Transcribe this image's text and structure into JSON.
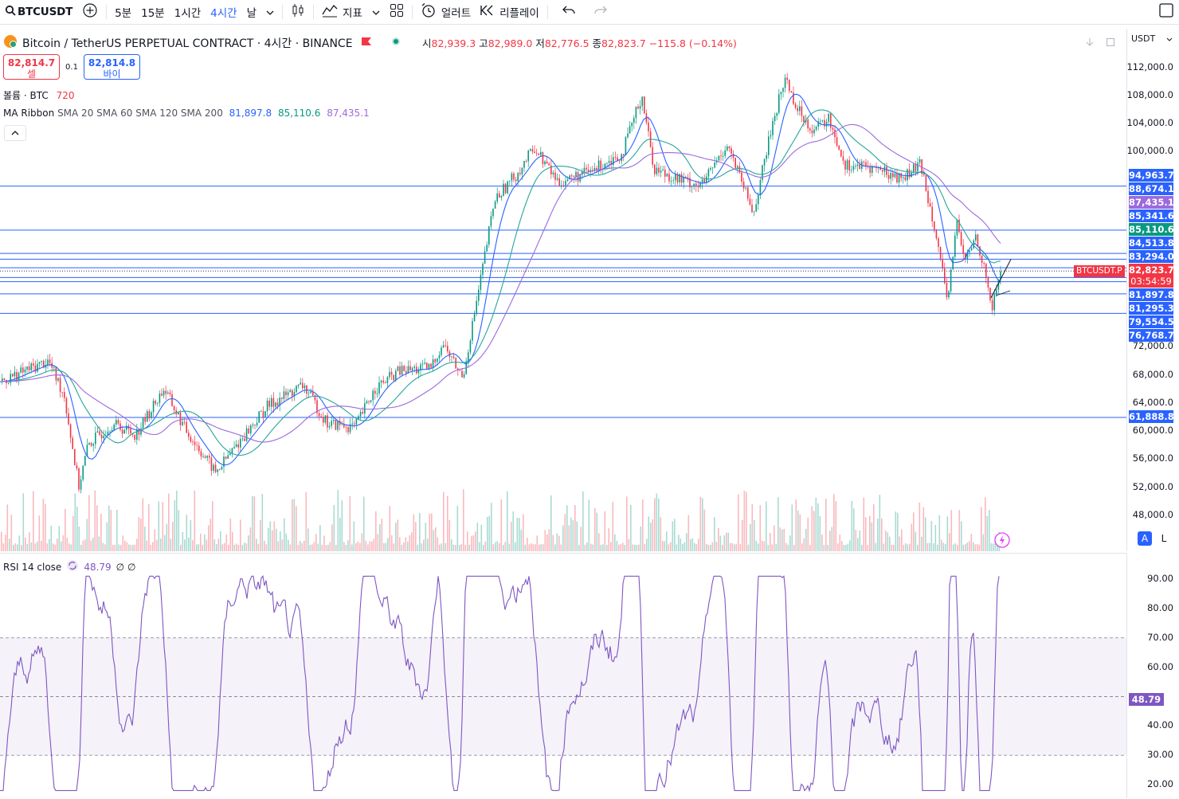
{
  "toolbar": {
    "symbol": "BTCUSDT",
    "intervals": [
      "5분",
      "15분",
      "1시간",
      "4시간",
      "날"
    ],
    "active_interval": "4시간",
    "indicators_label": "지표",
    "alert_label": "얼러트",
    "replay_label": "리플레이"
  },
  "legend": {
    "title": "Bitcoin / TetherUS PERPETUAL CONTRACT · 4시간 · BINANCE",
    "open_label": "시",
    "open": "82,939.3",
    "high_label": "고",
    "high": "82,989.0",
    "low_label": "저",
    "low": "82,776.5",
    "close_label": "종",
    "close": "82,823.7",
    "change": "−115.8 (−0.14%)"
  },
  "order": {
    "sell_price": "82,814.7",
    "sell_label": "셀",
    "spread": "0.1",
    "buy_price": "82,814.8",
    "buy_label": "바이"
  },
  "volume": {
    "label": "볼륨 · BTC",
    "value": "720"
  },
  "ma_ribbon": {
    "label": "MA Ribbon",
    "params": "SMA 20 SMA 60 SMA 120 SMA 200",
    "v1": "81,897.8",
    "v2": "85,110.6",
    "v3": "87,435.1"
  },
  "price_scale": {
    "unit": "USDT",
    "ticks": [
      "112,000.0",
      "108,000.0",
      "104,000.0",
      "100,000.0",
      "72,000.0",
      "68,000.0",
      "64,000.0",
      "60,000.0",
      "56,000.0",
      "52,000.0",
      "48,000.0"
    ]
  },
  "price_labels": [
    {
      "value": "94,963.7",
      "color": "#2962ff"
    },
    {
      "value": "88,674.1",
      "color": "#2962ff"
    },
    {
      "value": "87,435.1",
      "color": "#9c6ade"
    },
    {
      "value": "85,341.6",
      "color": "#2962ff"
    },
    {
      "value": "85,110.6",
      "color": "#089981"
    },
    {
      "value": "84,513.8",
      "color": "#2962ff"
    },
    {
      "value": "83,294.0",
      "color": "#2962ff"
    },
    {
      "value": "82,823.7",
      "color": "#f23645"
    },
    {
      "value": "81,897.8",
      "color": "#2962ff"
    },
    {
      "value": "81,295.3",
      "color": "#2962ff"
    },
    {
      "value": "79,554.5",
      "color": "#2962ff"
    },
    {
      "value": "76,768.7",
      "color": "#2962ff"
    },
    {
      "value": "61,888.8",
      "color": "#2962ff"
    }
  ],
  "countdown": "03:54:59",
  "symbol_tag": "BTCUSDT.P",
  "scale_buttons": {
    "auto": "A",
    "log": "L"
  },
  "rsi": {
    "label": "RSI 14 close",
    "value": "48.79",
    "extra": "∅ ∅",
    "ticks": [
      "90.00",
      "80.00",
      "70.00",
      "60.00",
      "40.00",
      "30.00",
      "20.00"
    ],
    "current_label": "48.79"
  },
  "colors": {
    "up": "#089981",
    "down": "#f23645",
    "accent": "#2962ff",
    "rsi": "#7e57c2"
  }
}
